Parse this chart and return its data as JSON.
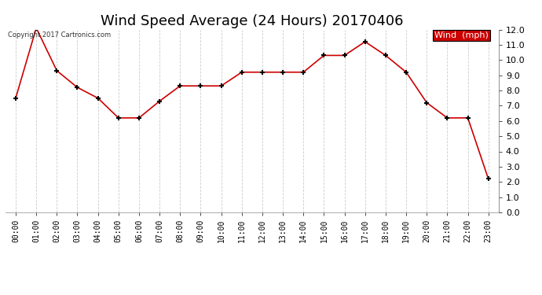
{
  "title": "Wind Speed Average (24 Hours) 20170406",
  "copyright_text": "Copyright 2017 Cartronics.com",
  "legend_label": "Wind  (mph)",
  "x_labels": [
    "00:00",
    "01:00",
    "02:00",
    "03:00",
    "04:00",
    "05:00",
    "06:00",
    "07:00",
    "08:00",
    "09:00",
    "10:00",
    "11:00",
    "12:00",
    "13:00",
    "14:00",
    "15:00",
    "16:00",
    "17:00",
    "18:00",
    "19:00",
    "20:00",
    "21:00",
    "22:00",
    "23:00"
  ],
  "y_values": [
    7.5,
    12.1,
    9.3,
    8.2,
    7.5,
    6.2,
    6.2,
    7.3,
    8.3,
    8.3,
    8.3,
    9.2,
    9.2,
    9.2,
    9.2,
    10.3,
    10.3,
    11.2,
    10.3,
    9.2,
    7.2,
    6.2,
    6.2,
    2.2
  ],
  "line_color": "#cc0000",
  "marker_color": "#000000",
  "bg_color": "#ffffff",
  "grid_color": "#cccccc",
  "ylim_min": 0.0,
  "ylim_max": 12.0,
  "ytick_step": 1.0,
  "title_fontsize": 13,
  "legend_bg": "#cc0000",
  "legend_text_color": "#ffffff"
}
